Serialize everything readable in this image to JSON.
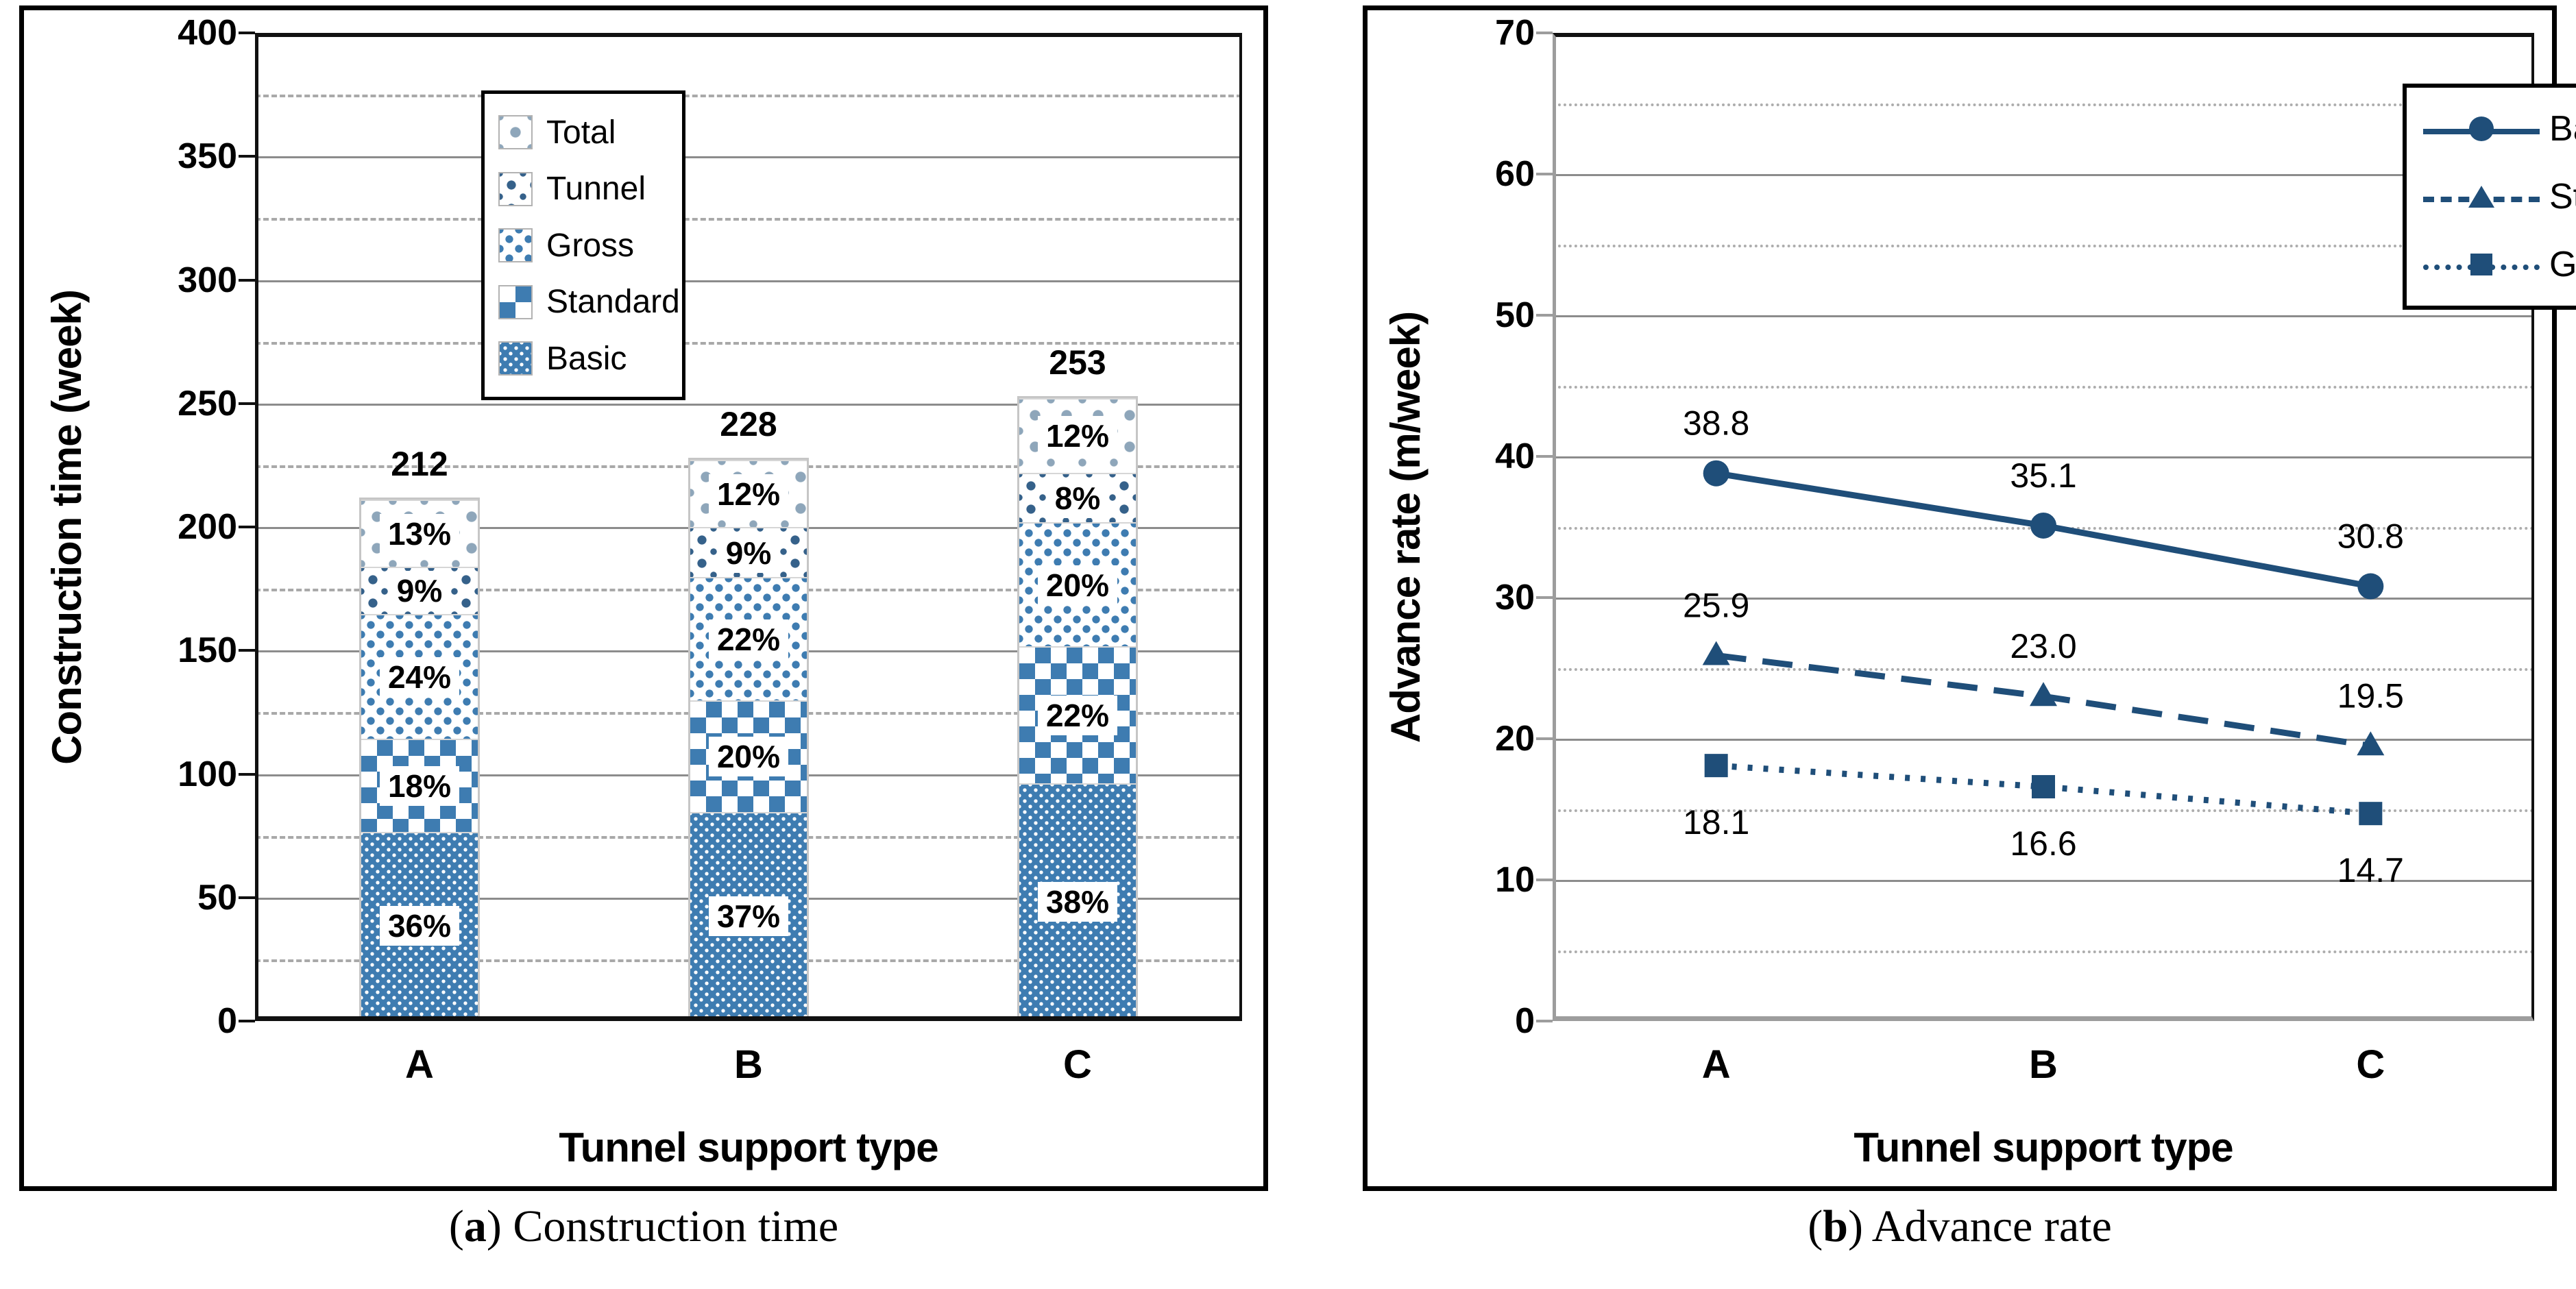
{
  "colors": {
    "bar_blue": "#3e7cb1",
    "line_navy": "#1f4e79",
    "grid_major": "#8c8c8c",
    "axis_black": "#111111",
    "axis_gray": "#9d9d9d"
  },
  "captions": [
    {
      "label": "a",
      "text": "Construction time"
    },
    {
      "label": "b",
      "text": "Advance rate"
    }
  ],
  "chart_data": [
    {
      "type": "bar",
      "stacked": true,
      "panel": "a",
      "xlabel": "Tunnel support type",
      "ylabel": "Construction time (week)",
      "ylim": [
        0,
        400
      ],
      "ytick_major": 50,
      "ytick_minor": 25,
      "grid": "major-solid, minor-dashed",
      "categories": [
        "A",
        "B",
        "C"
      ],
      "totals": [
        212,
        228,
        253
      ],
      "series": [
        {
          "name": "Basic",
          "pct": [
            36,
            37,
            38
          ]
        },
        {
          "name": "Standard",
          "pct": [
            18,
            20,
            22
          ]
        },
        {
          "name": "Gross",
          "pct": [
            24,
            22,
            20
          ]
        },
        {
          "name": "Tunnel",
          "pct": [
            9,
            9,
            8
          ]
        },
        {
          "name": "Total",
          "pct": [
            13,
            12,
            12
          ]
        }
      ],
      "legend": [
        "Total",
        "Tunnel",
        "Gross",
        "Standard",
        "Basic"
      ],
      "legend_position": "top-left"
    },
    {
      "type": "line",
      "panel": "b",
      "xlabel": "Tunnel support type",
      "ylabel": "Advance rate (m/week)",
      "ylim": [
        0,
        70
      ],
      "ytick_major": 10,
      "ytick_minor": 5,
      "grid": "major-solid, minor-dotted",
      "categories": [
        "A",
        "B",
        "C"
      ],
      "series": [
        {
          "name": "Basic",
          "values": [
            38.8,
            35.1,
            30.8
          ],
          "labels": [
            "38.8",
            "35.1",
            "30.8"
          ],
          "line": "solid",
          "marker": "circle",
          "label_side": "above"
        },
        {
          "name": "Standard",
          "values": [
            25.9,
            23.0,
            19.5
          ],
          "labels": [
            "25.9",
            "23.0",
            "19.5"
          ],
          "line": "dashed",
          "marker": "triangle",
          "label_side": "above"
        },
        {
          "name": "Gross",
          "values": [
            18.1,
            16.6,
            14.7
          ],
          "labels": [
            "18.1",
            "16.6",
            "14.7"
          ],
          "line": "dotted",
          "marker": "square",
          "label_side": "below"
        }
      ],
      "legend": [
        "Basic",
        "Standard",
        "Gross"
      ],
      "legend_position": "top-right"
    }
  ]
}
